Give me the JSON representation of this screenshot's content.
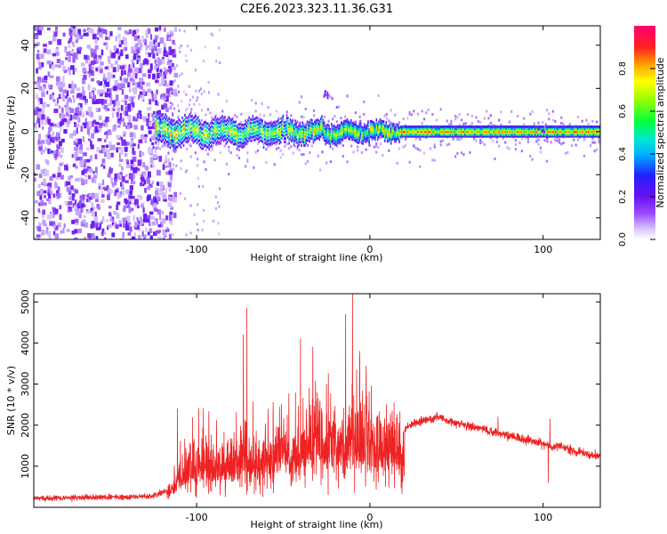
{
  "title": "C2E6.2023.323.11.36.G31",
  "colors": {
    "spectrogram_low": "#7a1cf0",
    "spectrogram_mid": "#00e0c0",
    "spectrogram_high": "#ff1a1a",
    "snr_line": "#ee2222",
    "axis": "#000000"
  },
  "chart_data": [
    {
      "type": "heatmap",
      "xlabel": "Height of straight line (km)",
      "ylabel": "Frequency (Hz)",
      "xlim": [
        -194,
        133
      ],
      "ylim": [
        -50,
        49
      ],
      "x_ticks": [
        -100,
        0,
        100
      ],
      "y_ticks": [
        -40,
        -20,
        0,
        20,
        40
      ],
      "grid": false,
      "noise_region_x": [
        -194,
        -117
      ],
      "signal_band": {
        "center_frequency": 0,
        "x_start": -124,
        "x_end": 133,
        "notable_features": [
          {
            "x": -25,
            "frequency": 17,
            "note": "faint secondary streak"
          },
          {
            "x": 100,
            "frequency": 0,
            "note": "narrow spike"
          }
        ]
      },
      "colorbar": {
        "label": "Normalized spectral amplitude",
        "range": [
          0,
          1
        ],
        "ticks": [
          0.0,
          0.2,
          0.4,
          0.6,
          0.8
        ],
        "tick_labels": [
          "0.0",
          "0.2",
          "0.4",
          "0.6",
          "0.8"
        ],
        "colormap": [
          "#ffffff",
          "#b48cff",
          "#7a1cf0",
          "#2828ff",
          "#00c8ff",
          "#00ff60",
          "#a8ff00",
          "#ffff00",
          "#ff9000",
          "#ff1a1a",
          "#ff0080"
        ]
      }
    },
    {
      "type": "line",
      "xlabel": "Height of straight line (km)",
      "ylabel": "SNR (10 * v/v)",
      "xlim": [
        -194,
        133
      ],
      "ylim": [
        0,
        5200
      ],
      "x_ticks": [
        -100,
        0,
        100
      ],
      "y_ticks": [
        1000,
        2000,
        3000,
        4000,
        5000
      ],
      "grid": false,
      "series": [
        {
          "x": [
            -194,
            -180,
            -160,
            -140,
            -125,
            -117,
            -110,
            -105,
            -100,
            -95,
            -90,
            -85,
            -80,
            -75,
            -70,
            -65,
            -60,
            -55,
            -50,
            -45,
            -40,
            -35,
            -30,
            -25,
            -20,
            -15,
            -10,
            -5,
            0,
            5,
            10,
            15,
            20,
            25,
            30,
            35,
            40,
            45,
            50,
            55,
            60,
            65,
            70,
            75,
            80,
            85,
            90,
            95,
            100,
            103,
            105,
            110,
            115,
            120,
            125,
            133
          ],
          "y": [
            220,
            230,
            240,
            250,
            270,
            420,
            900,
            1300,
            1100,
            1300,
            1200,
            1350,
            1300,
            1400,
            1600,
            1300,
            1700,
            1500,
            1800,
            1500,
            1900,
            2000,
            2200,
            1800,
            2000,
            1900,
            2100,
            2200,
            2000,
            1900,
            1850,
            1800,
            1900,
            2050,
            2100,
            2150,
            2200,
            2100,
            2050,
            2000,
            1950,
            1900,
            1850,
            1800,
            1750,
            1700,
            1650,
            1600,
            1550,
            1500,
            1450,
            1500,
            1400,
            1350,
            1300,
            1250
          ]
        }
      ],
      "peaks": [
        {
          "x": 74,
          "value": 2200
        },
        {
          "x": -71,
          "value": 4850
        },
        {
          "x": -73,
          "value": 4200
        },
        {
          "x": -40,
          "value": 4100
        },
        {
          "x": -33,
          "value": 3900
        },
        {
          "x": -14,
          "value": 4700
        },
        {
          "x": -10,
          "value": 5200
        },
        {
          "x": -6,
          "value": 3800
        },
        {
          "x": 104,
          "value": 2150
        },
        {
          "x": 103,
          "value": 600
        }
      ]
    }
  ]
}
